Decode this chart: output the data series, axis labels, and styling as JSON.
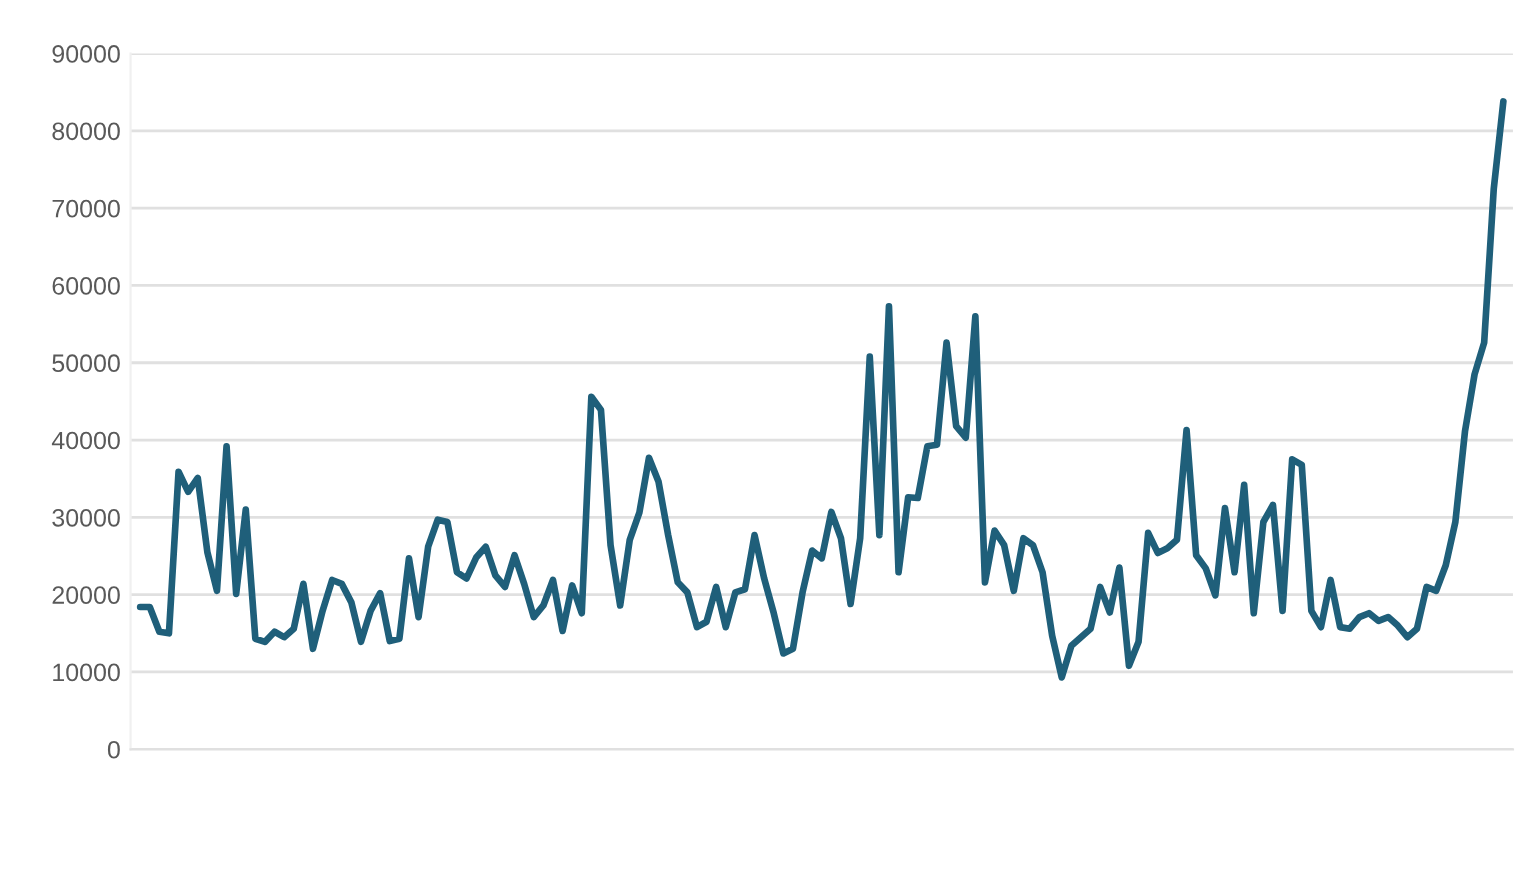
{
  "chart_data": {
    "type": "line",
    "categories": [
      null,
      null,
      null,
      null,
      null,
      null,
      null,
      null,
      null,
      null,
      null,
      null,
      null,
      null,
      null,
      null,
      null,
      null,
      null,
      null,
      null,
      null,
      null,
      null,
      null,
      null,
      null,
      null,
      null,
      null,
      null,
      null,
      null,
      null,
      null,
      null,
      null,
      null,
      null,
      null,
      null,
      null,
      null,
      null,
      null,
      null,
      null,
      null,
      null,
      null,
      null,
      null,
      null,
      null,
      null,
      null,
      null,
      null,
      null,
      null,
      null,
      null,
      null,
      null,
      null,
      null,
      null,
      null,
      null,
      null,
      null,
      null,
      null,
      null,
      null,
      null,
      null,
      null,
      null,
      null,
      null,
      null,
      null,
      null,
      null,
      null,
      null,
      null,
      null,
      null,
      null,
      null,
      null,
      null,
      null,
      null,
      null,
      null,
      null,
      null,
      null,
      null,
      null,
      null,
      null,
      null,
      null,
      null,
      null,
      null,
      null,
      null,
      null,
      null,
      null,
      null,
      null,
      null,
      null,
      null,
      null,
      null,
      null,
      null,
      null,
      null,
      null,
      null,
      null,
      null,
      null,
      null,
      null,
      null,
      null,
      null,
      null,
      null,
      null,
      null,
      null,
      null,
      null
    ],
    "series": [
      {
        "color": "#1f5f7a",
        "values": [
          18400,
          18400,
          15200,
          15000,
          35900,
          33300,
          35100,
          25500,
          20500,
          39200,
          20100,
          31000,
          14300,
          13900,
          15200,
          14500,
          15600,
          21400,
          13000,
          17900,
          21900,
          21400,
          19000,
          13900,
          17900,
          20200,
          14000,
          14300,
          24700,
          17100,
          26200,
          29700,
          29400,
          22900,
          22100,
          24800,
          26200,
          22500,
          21000,
          25100,
          21400,
          17100,
          18600,
          21900,
          15300,
          21200,
          17600,
          45600,
          43900,
          26400,
          18600,
          27100,
          30600,
          37700,
          34600,
          27700,
          21600,
          20300,
          15800,
          16500,
          21000,
          15800,
          20300,
          20700,
          27700,
          22100,
          17600,
          12400,
          13000,
          20300,
          25700,
          24700,
          30700,
          27300,
          18800,
          27300,
          50800,
          27700,
          57300,
          22900,
          32600,
          32500,
          39200,
          39400,
          52600,
          41800,
          40300,
          56000,
          21600,
          28300,
          26400,
          20500,
          27300,
          26400,
          22900,
          14700,
          9300,
          13400,
          14500,
          15600,
          21000,
          17700,
          23500,
          10800,
          13900,
          28000,
          25400,
          26000,
          27100,
          41300,
          25100,
          23400,
          19900,
          31200,
          22900,
          34200,
          17600,
          29400,
          31600,
          17900,
          37500,
          36800,
          17900,
          15800,
          21900,
          15800,
          15600,
          17100,
          17600,
          16600,
          17100,
          16000,
          14500,
          15600,
          21000,
          20500,
          23800,
          29400,
          41100,
          48500,
          52600,
          72500,
          83800
        ]
      }
    ],
    "ylim": [
      0,
      90000
    ],
    "yticks": [
      0,
      10000,
      20000,
      30000,
      40000,
      50000,
      60000,
      70000,
      80000,
      90000
    ],
    "grid": "y",
    "tick_labels": "y"
  }
}
